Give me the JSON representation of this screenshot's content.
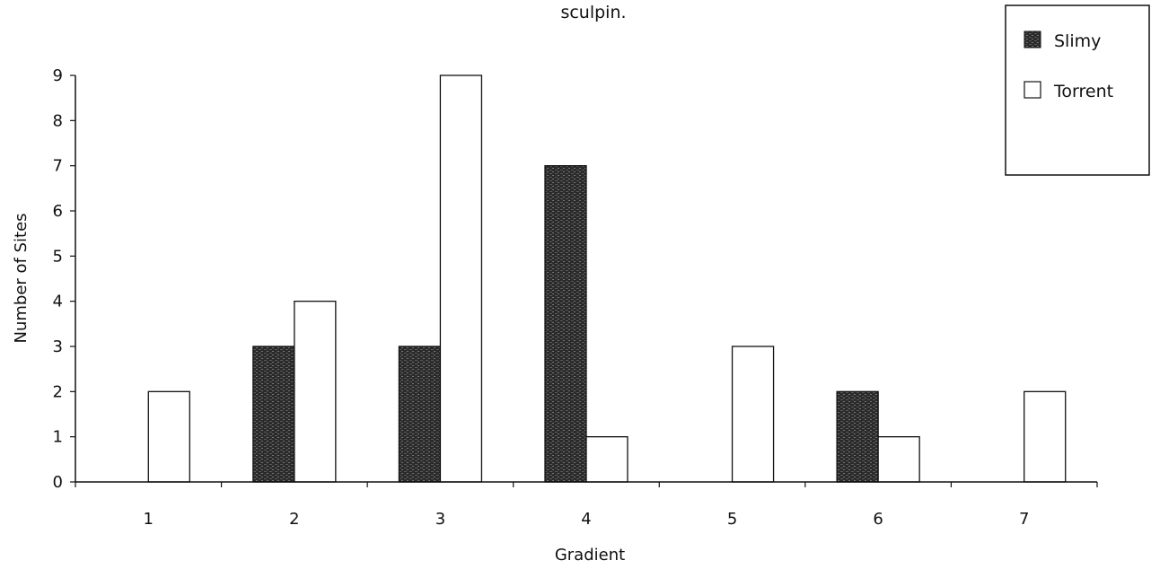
{
  "chart_data": {
    "type": "bar",
    "title": "sculpin.",
    "xlabel": "Gradient",
    "ylabel": "Number of Sites",
    "categories": [
      "1",
      "2",
      "3",
      "4",
      "5",
      "6",
      "7"
    ],
    "yticks": [
      "0",
      "1",
      "2",
      "3",
      "4",
      "5",
      "6",
      "7",
      "8",
      "9"
    ],
    "ylim": [
      0,
      9
    ],
    "series": [
      {
        "name": "Slimy",
        "values": [
          0,
          3,
          3,
          7,
          0,
          2,
          0
        ],
        "color": "#2a2a2a"
      },
      {
        "name": "Torrent",
        "values": [
          2,
          4,
          9,
          1,
          3,
          1,
          2
        ],
        "color": "#ffffff"
      }
    ],
    "legend_position": "top-right",
    "grid": false
  }
}
